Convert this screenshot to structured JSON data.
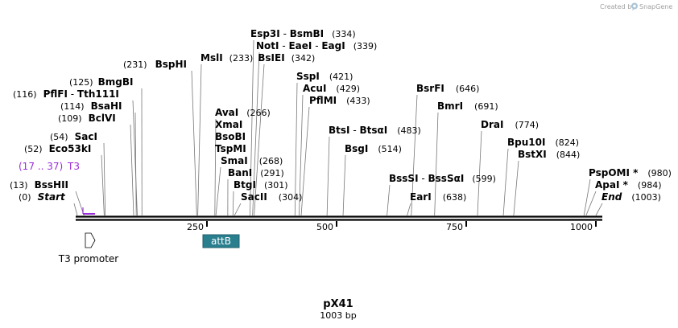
{
  "credit": {
    "text": "Created by",
    "brand": "SnapGene"
  },
  "plasmid": {
    "name": "pX41",
    "length_label": "1003 bp",
    "length": 1003
  },
  "ruler": {
    "ticks": [
      {
        "label": "250",
        "pos": 250
      },
      {
        "label": "500",
        "pos": 500
      },
      {
        "label": "750",
        "pos": 750
      },
      {
        "label": "1000",
        "pos": 1000
      }
    ]
  },
  "features": [
    {
      "name": "attB",
      "start": 248,
      "end": 318,
      "color": "#2a7f8f"
    },
    {
      "name": "T3 promoter",
      "start": 17,
      "end": 37
    }
  ],
  "primer": {
    "label": "T3",
    "range": "(17 .. 37)",
    "color": "#9a2bd8",
    "start": 17,
    "end": 37
  },
  "sites": [
    {
      "name": "Esp3I",
      "name2": "BsmBI",
      "pos": "(334)",
      "site": 334
    },
    {
      "name": "NotI",
      "name2": "EaeI",
      "name3": "EagI",
      "pos": "(339)",
      "site": 339
    },
    {
      "name": "BsIEI",
      "pos": "(342)",
      "site": 342
    },
    {
      "name": "MslI",
      "pos": "(233)",
      "site": 233
    },
    {
      "name": "BspHI",
      "pos": "(231)",
      "site": 231
    },
    {
      "name": "BmgBI",
      "pos": "(125)",
      "site": 125
    },
    {
      "name": "PflFI",
      "name2": "Tth111I",
      "pos": "(116)",
      "site": 116
    },
    {
      "name": "BsaHI",
      "pos": "(114)",
      "site": 114
    },
    {
      "name": "BclVI",
      "pos": "(109)",
      "site": 109
    },
    {
      "name": "SacI",
      "pos": "(54)",
      "site": 54
    },
    {
      "name": "Eco53kI",
      "pos": "(52)",
      "site": 52
    },
    {
      "name": "BssHII",
      "pos": "(13)",
      "site": 13
    },
    {
      "name": "Start",
      "pos": "(0)",
      "site": 0
    },
    {
      "name": "AvaI",
      "pos": "(266)",
      "site": 266
    },
    {
      "name": "XmaI",
      "site": 266
    },
    {
      "name": "BsoBI",
      "site": 266
    },
    {
      "name": "TspMI",
      "site": 266
    },
    {
      "name": "SmaI",
      "pos": "(268)",
      "site": 268
    },
    {
      "name": "BanI",
      "pos": "(291)",
      "site": 291
    },
    {
      "name": "BtgI",
      "pos": "(301)",
      "site": 301
    },
    {
      "name": "SacII",
      "pos": "(304)",
      "site": 304
    },
    {
      "name": "SspI",
      "pos": "(421)",
      "site": 421
    },
    {
      "name": "AcuI",
      "pos": "(429)",
      "site": 429
    },
    {
      "name": "PflMI",
      "pos": "(433)",
      "site": 433
    },
    {
      "name": "BtsI",
      "name2": "BtsαI",
      "pos": "(483)",
      "site": 483
    },
    {
      "name": "BsgI",
      "pos": "(514)",
      "site": 514
    },
    {
      "name": "BsrFI",
      "pos": "(646)",
      "site": 646
    },
    {
      "name": "BmrI",
      "pos": "(691)",
      "site": 691
    },
    {
      "name": "BssSI",
      "name2": "BssSαI",
      "pos": "(599)",
      "site": 599
    },
    {
      "name": "EarI",
      "pos": "(638)",
      "site": 638
    },
    {
      "name": "DraI",
      "pos": "(774)",
      "site": 774
    },
    {
      "name": "Bpu10I",
      "pos": "(824)",
      "site": 824
    },
    {
      "name": "BstXI",
      "pos": "(844)",
      "site": 844
    },
    {
      "name": "PspOMI *",
      "pos": "(980)",
      "site": 980
    },
    {
      "name": "ApaI *",
      "pos": "(984)",
      "site": 984
    },
    {
      "name": "End",
      "pos": "(1003)",
      "site": 1003
    }
  ]
}
